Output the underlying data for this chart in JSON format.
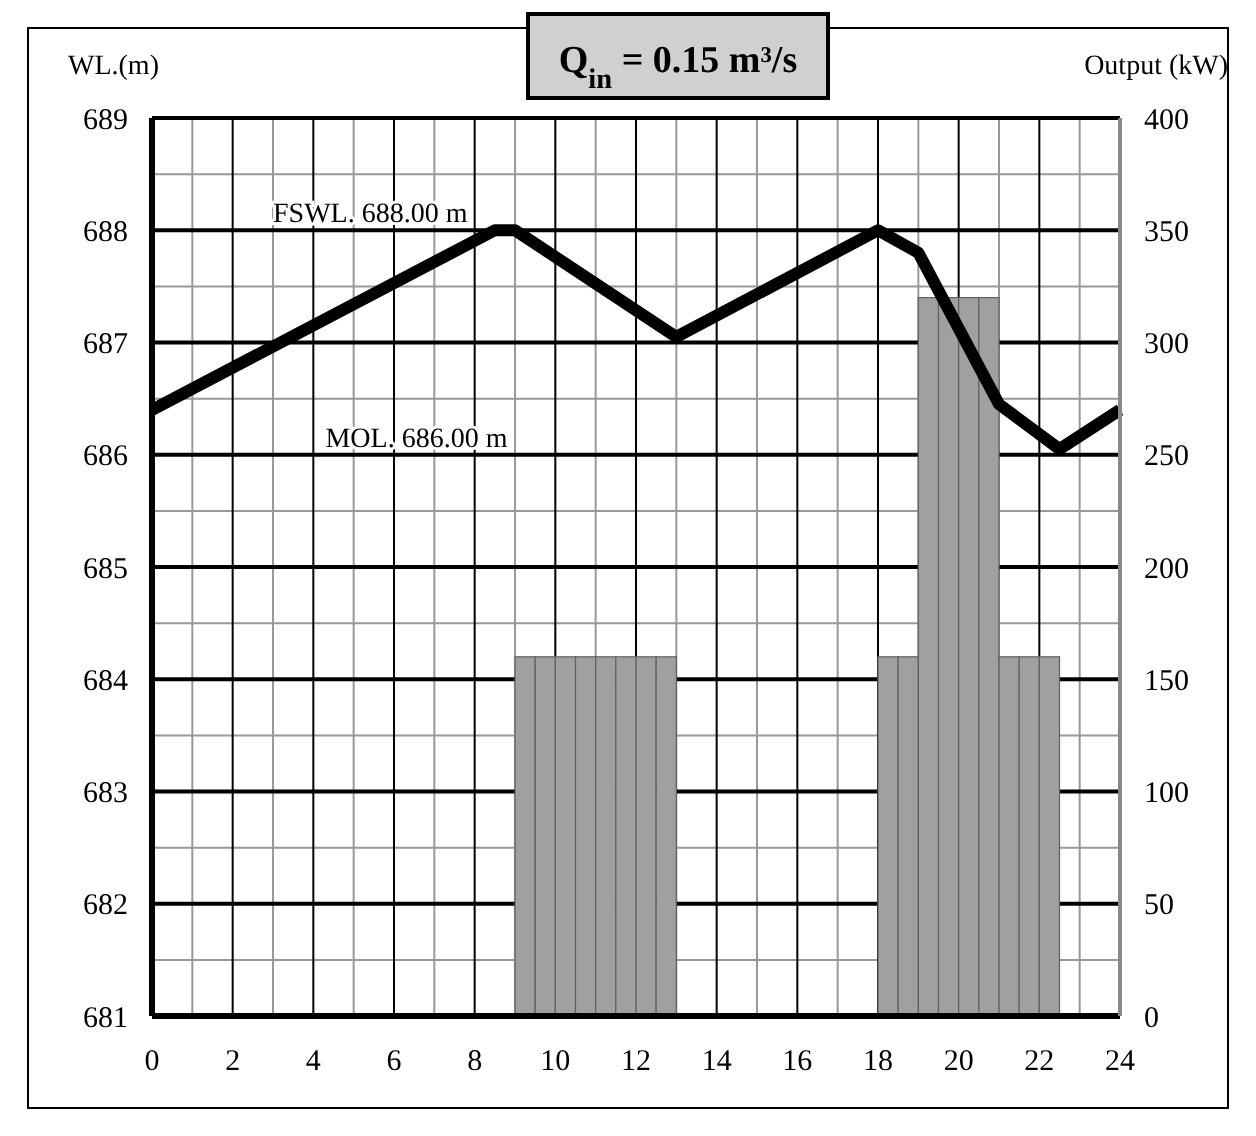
{
  "chart_data": {
    "type": "line",
    "title": "Q$_{in}$ = 0.15 m³/s",
    "ylabel": "WL.(m)",
    "y2label": "Output (kW)",
    "xlim": [
      0,
      24
    ],
    "xticks": [
      0,
      2,
      4,
      6,
      8,
      10,
      12,
      14,
      16,
      18,
      20,
      22,
      24
    ],
    "ylim": [
      681,
      689
    ],
    "yticks": [
      681,
      682,
      683,
      684,
      685,
      686,
      687,
      688,
      689
    ],
    "y2lim": [
      0,
      400
    ],
    "y2ticks": [
      0,
      50,
      100,
      150,
      200,
      250,
      300,
      350,
      400
    ],
    "grid": true,
    "annotations": [
      "FSWL. 688.00 m",
      "MOL. 686.00 m"
    ],
    "series": [
      {
        "type": "bar",
        "axis": "y2",
        "color": "#a0a0a0",
        "x": [
          9.25,
          9.75,
          10.25,
          10.75,
          11.25,
          11.75,
          12.25,
          12.75,
          18.25,
          18.75,
          19.25,
          19.75,
          20.25,
          20.75,
          21.25,
          21.75,
          22.25
        ],
        "values": [
          160,
          160,
          160,
          160,
          160,
          160,
          160,
          160,
          160,
          160,
          320,
          320,
          320,
          320,
          160,
          160,
          160
        ]
      },
      {
        "axis": "y",
        "color": "#000000",
        "x": [
          0,
          8.5,
          9,
          13,
          18,
          19,
          21,
          22.5,
          24
        ],
        "values": [
          686.4,
          688,
          688,
          687.05,
          688,
          687.8,
          686.45,
          686.05,
          686.4
        ]
      }
    ]
  }
}
